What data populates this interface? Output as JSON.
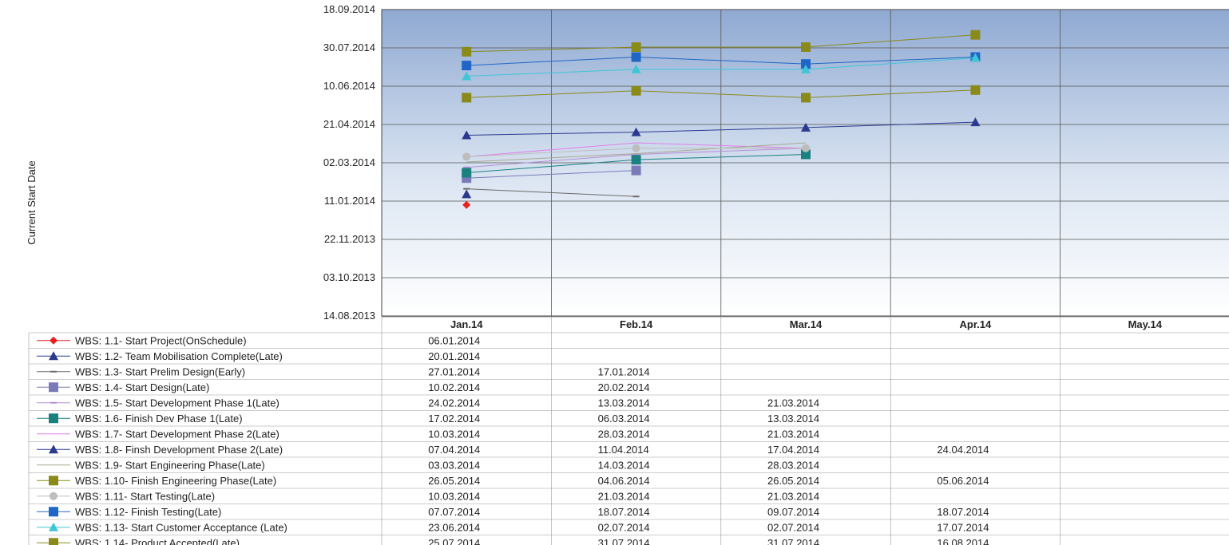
{
  "chart_data": {
    "type": "line",
    "ylabel": "Current Start Date",
    "y_ticks": [
      "14.08.2013",
      "03.10.2013",
      "22.11.2013",
      "11.01.2014",
      "02.03.2014",
      "21.04.2014",
      "10.06.2014",
      "30.07.2014",
      "18.09.2014"
    ],
    "ylim": [
      "14.08.2013",
      "18.09.2014"
    ],
    "categories": [
      "Jan.14",
      "Feb.14",
      "Mar.14",
      "Apr.14",
      "May.14"
    ],
    "grid": true,
    "legend_placement": "data table below plot",
    "series": [
      {
        "name": "WBS: 1.1-   Start Project(OnSchedule)",
        "color": "#e8211f",
        "marker": "diamond",
        "values": [
          "06.01.2014",
          null,
          null,
          null,
          null
        ]
      },
      {
        "name": "WBS: 1.2-   Team Mobilisation Complete(Late)",
        "color": "#2b3a8f",
        "marker": "triangle",
        "values": [
          "20.01.2014",
          null,
          null,
          null,
          null
        ]
      },
      {
        "name": "WBS: 1.3-   Start Prelim Design(Early)",
        "color": "#6b6b6b",
        "marker": "dash",
        "values": [
          "27.01.2014",
          "17.01.2014",
          null,
          null,
          null
        ]
      },
      {
        "name": "WBS: 1.4-   Start Design(Late)",
        "color": "#7a7ab8",
        "marker": "square",
        "values": [
          "10.02.2014",
          "20.02.2014",
          null,
          null,
          null
        ]
      },
      {
        "name": "WBS: 1.5-   Start Development Phase 1(Late)",
        "color": "#b58fd6",
        "marker": "dash",
        "values": [
          "24.02.2014",
          "13.03.2014",
          "21.03.2014",
          null,
          null
        ]
      },
      {
        "name": "WBS: 1.6-   Finish Dev Phase 1(Late)",
        "color": "#1a8080",
        "marker": "square",
        "values": [
          "17.02.2014",
          "06.03.2014",
          "13.03.2014",
          null,
          null
        ]
      },
      {
        "name": "WBS: 1.7-   Start Development Phase 2(Late)",
        "color": "#e080e8",
        "marker": "none",
        "values": [
          "10.03.2014",
          "28.03.2014",
          "21.03.2014",
          null,
          null
        ]
      },
      {
        "name": "WBS: 1.8-   Finsh Development Phase 2(Late)",
        "color": "#2b3a8f",
        "marker": "triangle",
        "values": [
          "07.04.2014",
          "11.04.2014",
          "17.04.2014",
          "24.04.2014",
          null
        ]
      },
      {
        "name": "WBS: 1.9-   Start Engineering Phase(Late)",
        "color": "#a8a890",
        "marker": "none",
        "values": [
          "03.03.2014",
          "14.03.2014",
          "28.03.2014",
          null,
          null
        ]
      },
      {
        "name": "WBS: 1.10-   Finish Engineering Phase(Late)",
        "color": "#8a8a1a",
        "marker": "square",
        "values": [
          "26.05.2014",
          "04.06.2014",
          "26.05.2014",
          "05.06.2014",
          null
        ]
      },
      {
        "name": "WBS: 1.11-   Start Testing(Late)",
        "color": "#bdbdbd",
        "marker": "circle",
        "values": [
          "10.03.2014",
          "21.03.2014",
          "21.03.2014",
          null,
          null
        ]
      },
      {
        "name": "WBS: 1.12-   Finish Testing(Late)",
        "color": "#1f66c6",
        "marker": "square",
        "values": [
          "07.07.2014",
          "18.07.2014",
          "09.07.2014",
          "18.07.2014",
          null
        ]
      },
      {
        "name": "WBS: 1.13-   Start Customer Acceptance (Late)",
        "color": "#3ec6d6",
        "marker": "triangle",
        "values": [
          "23.06.2014",
          "02.07.2014",
          "02.07.2014",
          "17.07.2014",
          null
        ]
      },
      {
        "name": "WBS: 1.14-   Product Accepted(Late)",
        "color": "#8a8a1a",
        "marker": "square",
        "values": [
          "25.07.2014",
          "31.07.2014",
          "31.07.2014",
          "16.08.2014",
          null
        ]
      }
    ]
  }
}
